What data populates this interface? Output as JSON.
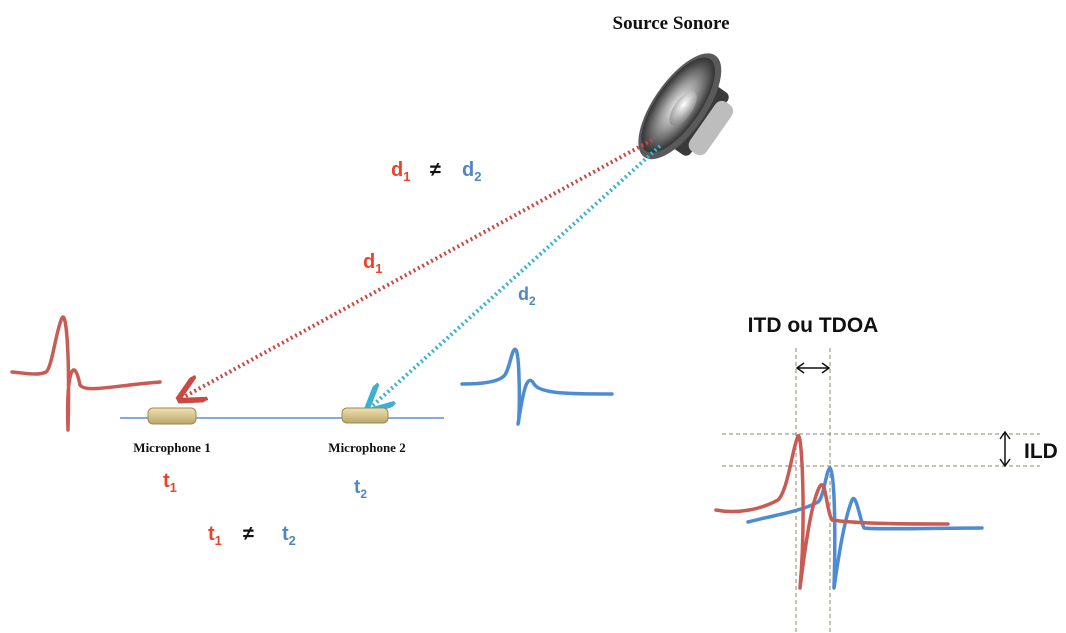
{
  "source_label": "Source Sonore",
  "distances": {
    "d1": "d",
    "d1_sub": "1",
    "d2": "d",
    "d2_sub": "2",
    "neq": "≠"
  },
  "microphones": [
    {
      "label": "Microphone 1",
      "time": "t",
      "time_sub": "1"
    },
    {
      "label": "Microphone 2",
      "time": "t",
      "time_sub": "2"
    }
  ],
  "times_neq": "≠",
  "itd_label": "ITD ou TDOA",
  "ild_label": "ILD",
  "colors": {
    "mic1": "#e8432d",
    "mic2": "#4f86c6",
    "wave1": "#c95b55",
    "wave2": "#4d8bd3",
    "path1": "#c94a45",
    "path2": "#3ab1d4"
  },
  "icons": [
    "speaker-icon",
    "microphone-icon"
  ]
}
